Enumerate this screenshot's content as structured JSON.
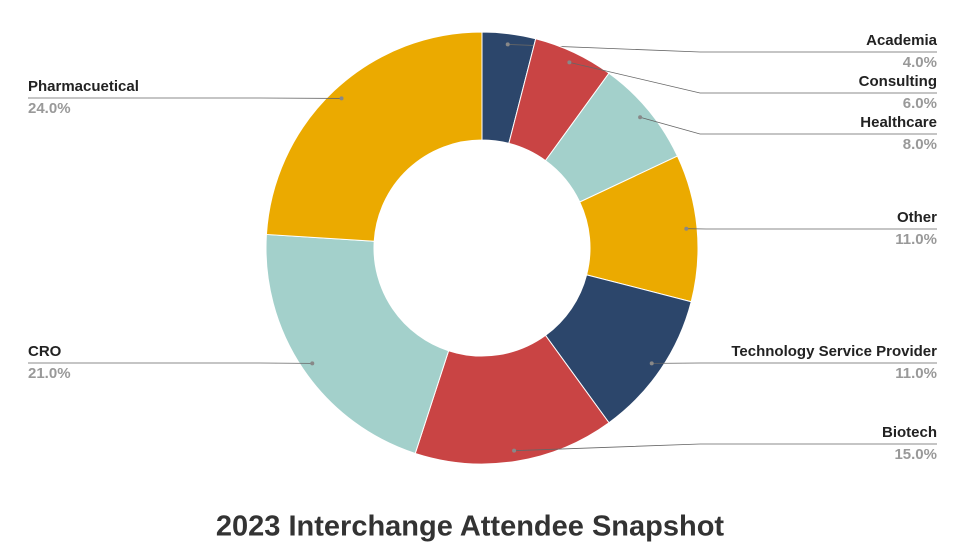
{
  "chart_data": {
    "type": "donut",
    "title": "2023 Interchange Attendee Snapshot",
    "categories": [
      "Academia",
      "Consulting",
      "Healthcare",
      "Other",
      "Technology Service Provider",
      "Biotech",
      "CRO",
      "Pharmacuetical"
    ],
    "values": [
      4.0,
      6.0,
      8.0,
      11.0,
      11.0,
      15.0,
      21.0,
      24.0
    ],
    "value_labels": [
      "4.0%",
      "6.0%",
      "8.0%",
      "11.0%",
      "11.0%",
      "15.0%",
      "21.0%",
      "24.0%"
    ],
    "colors": [
      "#2c466b",
      "#c94444",
      "#a3d0cb",
      "#ebaa00",
      "#2c466b",
      "#c94444",
      "#a3d0cb",
      "#ebaa00"
    ]
  }
}
